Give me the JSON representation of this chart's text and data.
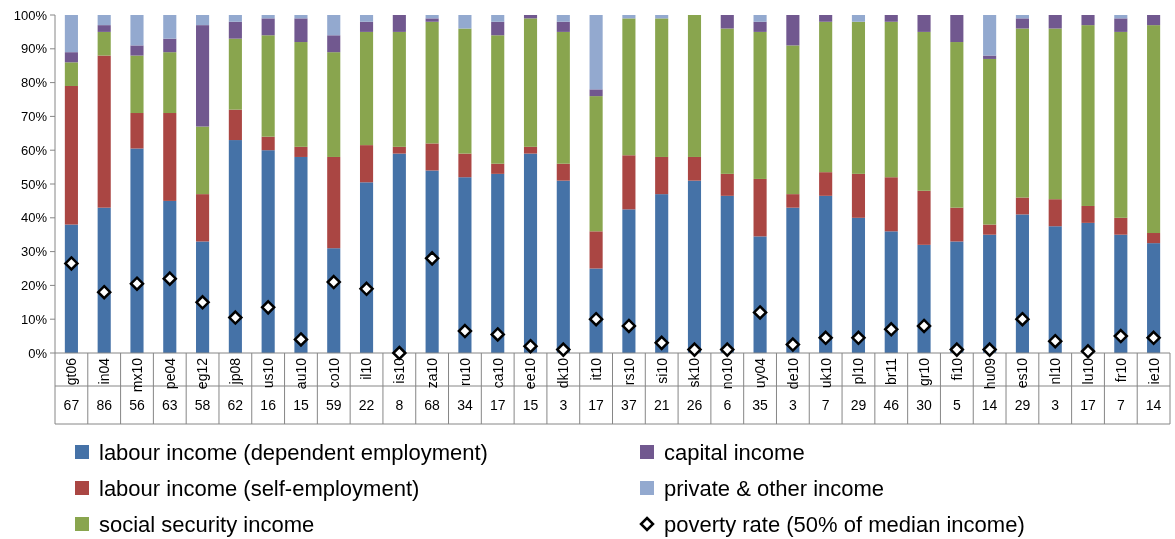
{
  "chart_data": {
    "type": "bar",
    "stacked": true,
    "ylim": [
      0,
      100
    ],
    "yticks": [
      {
        "value": 0,
        "label": "0%"
      },
      {
        "value": 10,
        "label": "10%"
      },
      {
        "value": 20,
        "label": "20%"
      },
      {
        "value": 30,
        "label": "30%"
      },
      {
        "value": 40,
        "label": "40%"
      },
      {
        "value": 50,
        "label": "50%"
      },
      {
        "value": 60,
        "label": "60%"
      },
      {
        "value": 70,
        "label": "70%"
      },
      {
        "value": 80,
        "label": "80%"
      },
      {
        "value": 90,
        "label": "90%"
      },
      {
        "value": 100,
        "label": "100%"
      }
    ],
    "legend": "bottom",
    "marker": "diamond",
    "categories": [
      "gt06",
      "in04",
      "mx10",
      "pe04",
      "eg12",
      "jp08",
      "us10",
      "au10",
      "co10",
      "il10",
      "is10",
      "za10",
      "ru10",
      "ca10",
      "ee10",
      "dk10",
      "it10",
      "rs10",
      "si10",
      "sk10",
      "no10",
      "uy04",
      "de10",
      "uk10",
      "pl10",
      "br11",
      "gr10",
      "fi10",
      "hu09",
      "es10",
      "nl10",
      "lu10",
      "fr10",
      "ie10"
    ],
    "series": [
      {
        "name": "labour income (dependent employment)",
        "color": "#4572a7",
        "values": [
          38,
          43,
          60.5,
          45,
          33,
          63,
          60,
          58,
          31,
          50.5,
          59,
          54,
          52,
          53,
          59,
          51,
          25,
          42.5,
          47,
          51,
          46.5,
          34.5,
          43,
          46.5,
          40,
          36,
          32,
          33,
          35,
          41,
          37.5,
          38.5,
          35,
          32.5
        ]
      },
      {
        "name": "labour income (self-employment)",
        "color": "#aa4643",
        "values": [
          41,
          45,
          10.5,
          26,
          14,
          9,
          4,
          3,
          27,
          11,
          2,
          8,
          7,
          3,
          2,
          5,
          11,
          16,
          11,
          7,
          6.5,
          17,
          4,
          7,
          13,
          16,
          16,
          10,
          3,
          5,
          8,
          5,
          5,
          3
        ]
      },
      {
        "name": "social security income",
        "color": "#89a54e",
        "values": [
          7,
          7,
          17,
          18,
          20,
          21,
          30,
          31,
          31,
          33.5,
          34,
          36,
          37,
          38,
          38,
          39,
          40,
          40.5,
          41,
          42,
          43,
          43.5,
          44,
          44.5,
          45,
          46,
          47,
          49,
          49,
          50,
          50.5,
          53.5,
          55,
          61.5
        ]
      },
      {
        "name": "capital income",
        "color": "#71588f",
        "values": [
          3,
          2,
          3,
          4,
          30,
          5,
          5,
          7,
          5,
          3,
          5,
          1,
          0,
          4,
          1,
          3,
          2,
          0,
          0,
          0,
          4,
          3,
          9,
          2,
          0,
          2,
          5,
          8,
          1,
          3,
          4,
          3,
          4,
          3
        ]
      },
      {
        "name": "private & other income",
        "color": "#93a9cf",
        "values": [
          11,
          3,
          9,
          7,
          3,
          2,
          1,
          1,
          6,
          2,
          0,
          1,
          4,
          2,
          0,
          2,
          22,
          1,
          1,
          0,
          0,
          2,
          0,
          0,
          2,
          0,
          0,
          0,
          12,
          1,
          0,
          0,
          1,
          0
        ]
      },
      {
        "name": "poverty rate (50% of median income)",
        "type": "scatter",
        "color": "#ffffff",
        "values": [
          26.5,
          18,
          20.5,
          22,
          15,
          10.5,
          13.5,
          4,
          21,
          19,
          0,
          28,
          6.5,
          5.5,
          2,
          1,
          10,
          8,
          3,
          1,
          1,
          12,
          2.5,
          4.5,
          4.5,
          7,
          8,
          1,
          1,
          10,
          3.5,
          0.5,
          5,
          4.5
        ]
      }
    ],
    "annotations": [
      "67",
      "86",
      "56",
      "63",
      "58",
      "62",
      "16",
      "15",
      "59",
      "22",
      "8",
      "68",
      "34",
      "17",
      "15",
      "3",
      "17",
      "37",
      "21",
      "26",
      "6",
      "35",
      "3",
      "7",
      "29",
      "46",
      "30",
      "5",
      "14",
      "29",
      "3",
      "17",
      "7",
      "14"
    ]
  }
}
